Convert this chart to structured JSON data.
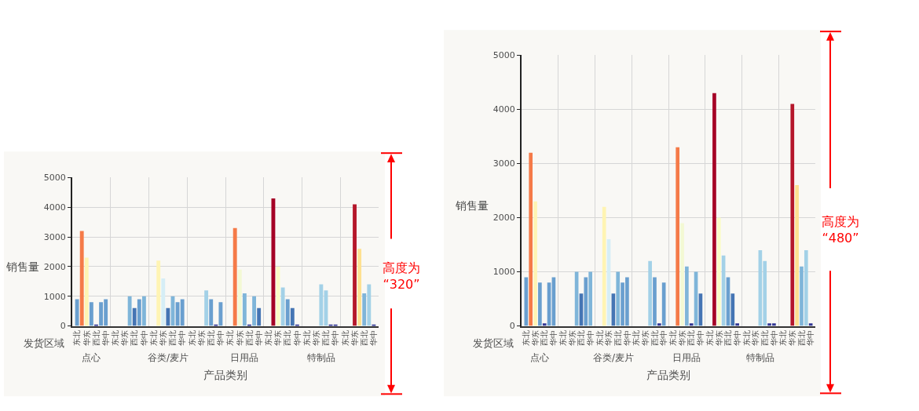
{
  "chart_data": [
    {
      "type": "bar",
      "categories": [
        "点心",
        null,
        "谷类/麦片",
        null,
        "日用品",
        null,
        "特制品",
        null
      ],
      "xlabel": "产品类别",
      "ylabel": "销售量",
      "legend_title": "发货区域",
      "ylim": [
        0,
        5000
      ],
      "yticks": [
        0,
        1000,
        2000,
        3000,
        4000,
        5000
      ],
      "grid": true,
      "series": [
        {
          "name": "东北",
          "values": [
            900,
            null,
            null,
            null,
            null,
            null,
            null,
            null
          ],
          "colors": [
            "#6a9fcf",
            null,
            null,
            null,
            null,
            null,
            null,
            null
          ]
        },
        {
          "values": [
            3200,
            null,
            2200,
            null,
            3300,
            4300,
            null,
            null
          ],
          "colors": [
            "#f57a48",
            null,
            "#fff4b3",
            null,
            "#f57a48",
            "#a50026",
            null,
            null
          ]
        },
        {
          "name": "华东",
          "values": [
            2300,
            null,
            1600,
            null,
            1900,
            2000,
            null,
            4100
          ],
          "colors": [
            "#fff4b3",
            null,
            "#d6eef6",
            null,
            "#f3f9d3",
            "#fbfcc6",
            null,
            "#b5172b"
          ]
        },
        {
          "values": [
            800,
            1000,
            600,
            1200,
            1100,
            1300,
            1400,
            2600
          ],
          "colors": [
            "#6a9fcf",
            "#7fb5d9",
            "#4575b4",
            "#a3d1e7",
            "#7fb5d9",
            "#a3d1e7",
            "#a3d1e7",
            "#fee090"
          ]
        },
        {
          "name": "西北",
          "values": [
            50,
            600,
            1000,
            900,
            50,
            900,
            1200,
            1100
          ],
          "colors": [
            "#313695",
            "#4575b4",
            "#7fb5d9",
            "#6a9fcf",
            "#313695",
            "#6a9fcf",
            "#a3d1e7",
            "#7fb5d9"
          ]
        },
        {
          "values": [
            800,
            900,
            800,
            50,
            1000,
            600,
            50,
            1400
          ],
          "colors": [
            "#6a9fcf",
            "#6a9fcf",
            "#6a9fcf",
            "#313695",
            "#7fb5d9",
            "#4575b4",
            "#313695",
            "#a3d1e7"
          ]
        },
        {
          "name": "华中",
          "values": [
            900,
            1000,
            900,
            800,
            600,
            50,
            50,
            50
          ],
          "colors": [
            "#6a9fcf",
            "#7fb5d9",
            "#6a9fcf",
            "#6a9fcf",
            "#4575b4",
            "#313695",
            "#313695",
            "#313695"
          ]
        }
      ],
      "annotations": [
        "高度为\n“320”"
      ]
    },
    {
      "type": "bar",
      "categories": [
        "点心",
        null,
        "谷类/麦片",
        null,
        "日用品",
        null,
        "特制品",
        null
      ],
      "xlabel": "产品类别",
      "ylabel": "销售量",
      "legend_title": "发货区域",
      "ylim": [
        0,
        5000
      ],
      "yticks": [
        0,
        1000,
        2000,
        3000,
        4000,
        5000
      ],
      "grid": true,
      "series": [
        {
          "name": "东北",
          "values": [
            900,
            null,
            null,
            null,
            null,
            null,
            null,
            null
          ],
          "colors": [
            "#6a9fcf",
            null,
            null,
            null,
            null,
            null,
            null,
            null
          ]
        },
        {
          "values": [
            3200,
            null,
            2200,
            null,
            3300,
            4300,
            null,
            null
          ],
          "colors": [
            "#f57a48",
            null,
            "#fff4b3",
            null,
            "#f57a48",
            "#a50026",
            null,
            null
          ]
        },
        {
          "name": "华东",
          "values": [
            2300,
            null,
            1600,
            null,
            1900,
            2000,
            null,
            4100
          ],
          "colors": [
            "#fff4b3",
            null,
            "#d6eef6",
            null,
            "#f3f9d3",
            "#fbfcc6",
            null,
            "#b5172b"
          ]
        },
        {
          "values": [
            800,
            1000,
            600,
            1200,
            1100,
            1300,
            1400,
            2600
          ],
          "colors": [
            "#6a9fcf",
            "#7fb5d9",
            "#4575b4",
            "#a3d1e7",
            "#7fb5d9",
            "#a3d1e7",
            "#a3d1e7",
            "#fee090"
          ]
        },
        {
          "name": "西北",
          "values": [
            50,
            600,
            1000,
            900,
            50,
            900,
            1200,
            1100
          ],
          "colors": [
            "#313695",
            "#4575b4",
            "#7fb5d9",
            "#6a9fcf",
            "#313695",
            "#6a9fcf",
            "#a3d1e7",
            "#7fb5d9"
          ]
        },
        {
          "values": [
            800,
            900,
            800,
            50,
            1000,
            600,
            50,
            1400
          ],
          "colors": [
            "#6a9fcf",
            "#6a9fcf",
            "#6a9fcf",
            "#313695",
            "#7fb5d9",
            "#4575b4",
            "#313695",
            "#a3d1e7"
          ]
        },
        {
          "name": "华中",
          "values": [
            900,
            1000,
            900,
            800,
            600,
            50,
            50,
            50
          ],
          "colors": [
            "#6a9fcf",
            "#7fb5d9",
            "#6a9fcf",
            "#6a9fcf",
            "#4575b4",
            "#313695",
            "#313695",
            "#313695"
          ]
        }
      ],
      "annotations": [
        "高度为\n“480”"
      ]
    }
  ]
}
